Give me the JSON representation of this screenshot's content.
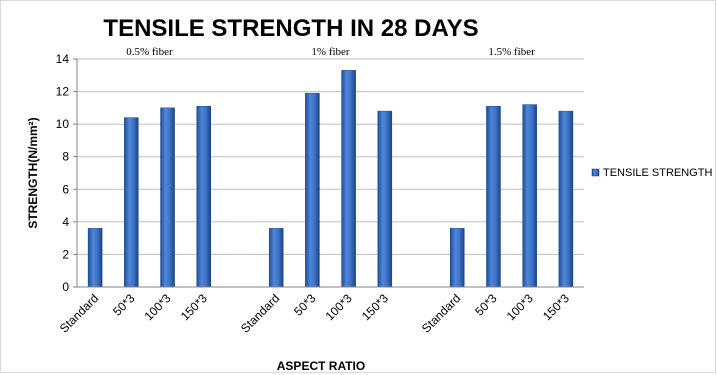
{
  "chart_data": {
    "type": "bar",
    "title": "TENSILE STRENGTH IN 28 DAYS",
    "xlabel": "ASPECT RATIO",
    "ylabel": "STRENGTH(N/mm²)",
    "ylim": [
      0,
      14
    ],
    "yticks": [
      0,
      2,
      4,
      6,
      8,
      10,
      12,
      14
    ],
    "grid": true,
    "legend_position": "right",
    "groups": [
      {
        "label": "0.5% fiber",
        "categories": [
          "Standard",
          "50*3",
          "100*3",
          "150*3"
        ]
      },
      {
        "label": "1% fiber",
        "categories": [
          "Standard",
          "50*3",
          "100*3",
          "150*3"
        ]
      },
      {
        "label": "1.5% fiber",
        "categories": [
          "Standard",
          "50*3",
          "100*3",
          "150*3"
        ]
      }
    ],
    "series": [
      {
        "name": "TENSILE STRENGTH",
        "color": "#3a6fc4",
        "values": [
          3.6,
          10.4,
          11.0,
          11.1,
          3.6,
          11.9,
          13.3,
          10.8,
          3.6,
          11.1,
          11.2,
          10.8
        ]
      }
    ]
  }
}
